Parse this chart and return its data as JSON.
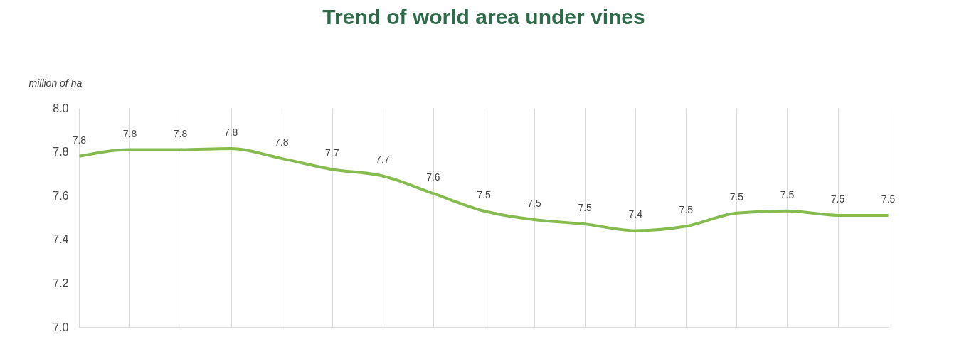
{
  "chart_data": {
    "type": "line",
    "title": "Trend of world area under vines",
    "ylabel": "million of ha",
    "categories": [
      null,
      null,
      null,
      null,
      null,
      null,
      null,
      null,
      null,
      null,
      null,
      null,
      null,
      null,
      null,
      null,
      null
    ],
    "series": [
      {
        "color": "#86bc4f",
        "values": [
          7.78,
          7.81,
          7.81,
          7.815,
          7.77,
          7.72,
          7.69,
          7.61,
          7.53,
          7.49,
          7.47,
          7.44,
          7.46,
          7.52,
          7.53,
          7.51,
          7.51
        ],
        "value_labels": [
          "7.8",
          "7.8",
          "7.8",
          "7.8",
          "7.8",
          "7.7",
          "7.7",
          "7.6",
          "7.5",
          "7.5",
          "7.5",
          "7.4",
          "7.5",
          "7.5",
          "7.5",
          "7.5",
          "7.5"
        ]
      }
    ],
    "ylim": [
      7.0,
      8.0
    ],
    "yticks": [
      {
        "value": 7.0,
        "label": "7.0"
      },
      7.2,
      7.4,
      7.6,
      7.8,
      {
        "value": 8.0,
        "label": "8.0"
      }
    ],
    "grid": "x",
    "marker": "none",
    "line_style": "solid"
  }
}
